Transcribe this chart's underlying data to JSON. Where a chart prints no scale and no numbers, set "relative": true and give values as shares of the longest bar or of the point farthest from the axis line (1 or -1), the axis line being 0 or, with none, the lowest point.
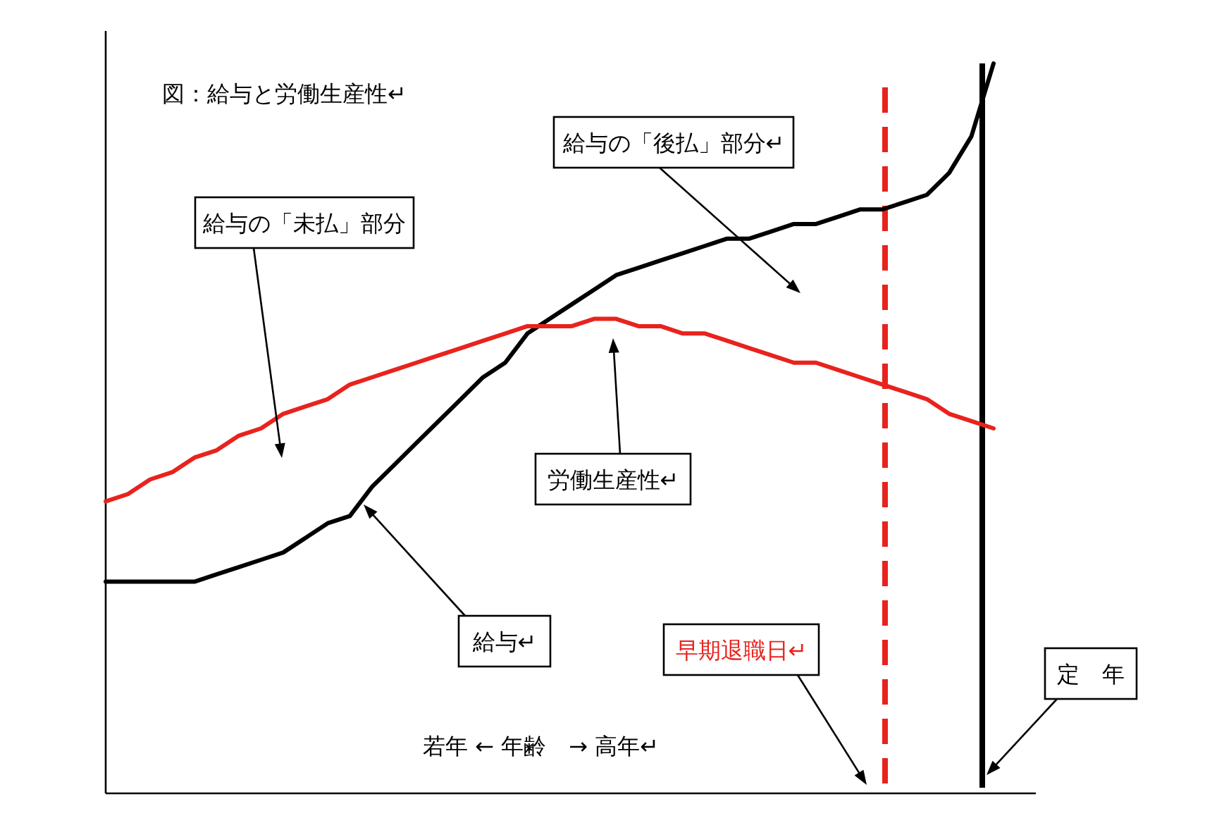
{
  "chart_data": {
    "type": "line",
    "relative": true,
    "title": "図：給与と労働生産性↵",
    "xlabel": "若年 ← 年齢　→ 高年↵",
    "marker": "none",
    "line_style": "solid",
    "categories": [
      null,
      null,
      null,
      null,
      null,
      null,
      null,
      null,
      null,
      null,
      null,
      null,
      null,
      null,
      null,
      null,
      null,
      null,
      null,
      null,
      null,
      null,
      null,
      null,
      null,
      null,
      null,
      null,
      null,
      null,
      null,
      null,
      null,
      null,
      null,
      null,
      null,
      null,
      null,
      null,
      null
    ],
    "series": [
      {
        "color": "#000000",
        "values": [
          0.29,
          0.29,
          0.29,
          0.29,
          0.29,
          0.3,
          0.31,
          0.32,
          0.33,
          0.35,
          0.37,
          0.38,
          0.42,
          0.45,
          0.48,
          0.51,
          0.54,
          0.57,
          0.59,
          0.63,
          0.65,
          0.67,
          0.69,
          0.71,
          0.72,
          0.73,
          0.74,
          0.75,
          0.76,
          0.76,
          0.77,
          0.78,
          0.78,
          0.79,
          0.8,
          0.8,
          0.81,
          0.82,
          0.85,
          0.9,
          1
        ]
      },
      {
        "color": "#e8231d",
        "values": [
          0.4,
          0.41,
          0.43,
          0.44,
          0.46,
          0.47,
          0.49,
          0.5,
          0.52,
          0.53,
          0.54,
          0.56,
          0.57,
          0.58,
          0.59,
          0.6,
          0.61,
          0.62,
          0.63,
          0.64,
          0.64,
          0.64,
          0.65,
          0.65,
          0.64,
          0.64,
          0.63,
          0.63,
          0.62,
          0.61,
          0.6,
          0.59,
          0.59,
          0.58,
          0.57,
          0.56,
          0.55,
          0.54,
          0.52,
          0.51,
          0.5
        ]
      }
    ],
    "ref_lines": [
      {
        "axis": "x",
        "label": "早期退職日↵",
        "color": "#e8231d",
        "line_style": "dashed"
      },
      {
        "axis": "x",
        "label": "定　年",
        "color": "#000000",
        "line_style": "solid"
      }
    ],
    "annotations": [
      "給与の「後払」部分↵",
      "給与の「未払」部分",
      "労働生産性↵",
      "給与↵"
    ]
  }
}
